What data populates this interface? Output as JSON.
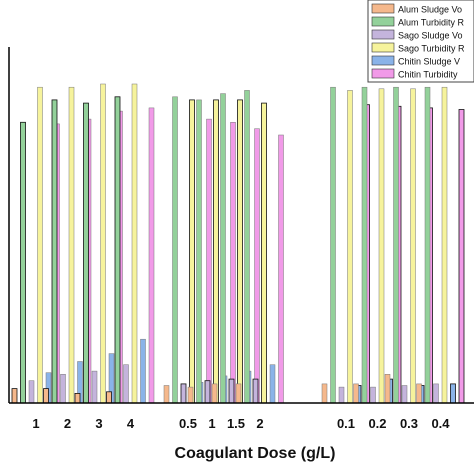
{
  "chart_data": {
    "type": "bar",
    "xlabel": "Coagulant Dose (g/L)",
    "ylabel": "",
    "ylim": [
      0,
      100
    ],
    "legend_position": "top-right",
    "categories": [
      "1",
      "2",
      "3",
      "4",
      "0.5",
      "1",
      "1.5",
      "2",
      "0.1",
      "0.2",
      "0.3",
      "0.4"
    ],
    "groups": [
      {
        "series": [
          0,
          1
        ],
        "categories": [
          0,
          1,
          2,
          3
        ]
      },
      {
        "series": [
          2,
          3
        ],
        "categories": [
          4,
          5,
          6,
          7
        ]
      },
      {
        "series": [
          4,
          5
        ],
        "categories": [
          8,
          9,
          10,
          11
        ]
      }
    ],
    "series": [
      {
        "name": "Alum Sludge Vo",
        "color": "#f5b88c",
        "values": [
          4.5,
          4.5,
          3,
          3.5,
          5.5,
          5,
          6,
          6,
          6,
          6,
          9,
          6
        ]
      },
      {
        "name": "Alum Turbidity R",
        "color": "#93d19a",
        "values": [
          88,
          95,
          94,
          96,
          96,
          95,
          97,
          98,
          99,
          99,
          99,
          99
        ]
      },
      {
        "name": "Sago Sludge Vo",
        "color": "#c4b4dc",
        "values": [
          7,
          9,
          10,
          12,
          6,
          7,
          7.5,
          7.5,
          5,
          5,
          5.5,
          6
        ]
      },
      {
        "name": "Sago Turbidity R",
        "color": "#f6f39c",
        "values": [
          99,
          99,
          100,
          100,
          95,
          95,
          95,
          94,
          98,
          98.5,
          98.5,
          99
        ]
      },
      {
        "name": "Chitin Sludge V",
        "color": "#8ab3e8",
        "values": [
          9.5,
          13,
          15.5,
          20,
          6.5,
          8.5,
          10,
          12,
          5.5,
          7.5,
          5.5,
          6
        ]
      },
      {
        "name": "Chitin Turbidity",
        "color": "#f19ae8",
        "values": [
          87.5,
          89,
          91.5,
          92.5,
          89,
          88,
          86,
          84,
          93.5,
          93,
          92.5,
          92
        ]
      }
    ]
  }
}
